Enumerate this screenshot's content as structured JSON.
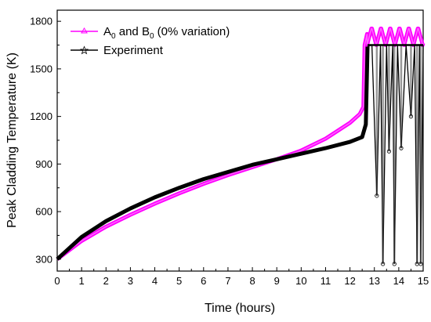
{
  "chart_data": {
    "type": "line",
    "xlabel": "Time (hours)",
    "ylabel": "Peak Cladding Temperature (K)",
    "xlim": [
      0,
      15
    ],
    "ylim": [
      225,
      1870
    ],
    "x_ticks": [
      0,
      1,
      2,
      3,
      4,
      5,
      6,
      7,
      8,
      9,
      10,
      11,
      12,
      13,
      14,
      15
    ],
    "y_ticks": [
      300,
      600,
      900,
      1200,
      1500,
      1800
    ],
    "grid": false,
    "legend_position": "top-left",
    "series": [
      {
        "name": "A0 and B0 (0% variation)",
        "legend_parts": {
          "a": "A",
          "a_sub": "0",
          "mid": " and B",
          "b_sub": "0",
          "tail": " (0% variation)"
        },
        "color": "#ff00ff",
        "marker": "triangle",
        "x": [
          0,
          1,
          2,
          3,
          4,
          5,
          6,
          7,
          8,
          9,
          10,
          11,
          12,
          12.4,
          12.55,
          12.6,
          12.7
        ],
        "y": [
          300,
          415,
          505,
          580,
          650,
          715,
          775,
          830,
          880,
          930,
          985,
          1060,
          1160,
          1215,
          1260,
          1650,
          1720
        ],
        "oscillation": {
          "x_start": 12.7,
          "x_end": 15.0,
          "period": 0.38,
          "low": 1650,
          "high": 1760
        }
      },
      {
        "name": "Experiment",
        "color": "#000000",
        "marker": "star",
        "x": [
          0,
          1,
          2,
          3,
          4,
          5,
          6,
          7,
          8,
          9,
          10,
          11,
          12,
          12.5,
          12.65,
          12.72
        ],
        "y": [
          300,
          440,
          540,
          620,
          690,
          750,
          805,
          850,
          895,
          930,
          965,
          1000,
          1040,
          1070,
          1150,
          1640
        ],
        "drops": [
          {
            "x": 12.9,
            "y": 1650
          },
          {
            "x": 13.1,
            "y": 700
          },
          {
            "x": 13.25,
            "y": 1650
          },
          {
            "x": 13.35,
            "y": 270
          },
          {
            "x": 13.5,
            "y": 1650
          },
          {
            "x": 13.6,
            "y": 980
          },
          {
            "x": 13.75,
            "y": 1650
          },
          {
            "x": 13.82,
            "y": 270
          },
          {
            "x": 13.95,
            "y": 1650
          },
          {
            "x": 14.1,
            "y": 1000
          },
          {
            "x": 14.3,
            "y": 1650
          },
          {
            "x": 14.5,
            "y": 1200
          },
          {
            "x": 14.65,
            "y": 1650
          },
          {
            "x": 14.75,
            "y": 270
          },
          {
            "x": 14.85,
            "y": 1650
          },
          {
            "x": 14.9,
            "y": 270
          },
          {
            "x": 15.0,
            "y": 1650
          }
        ]
      }
    ]
  }
}
